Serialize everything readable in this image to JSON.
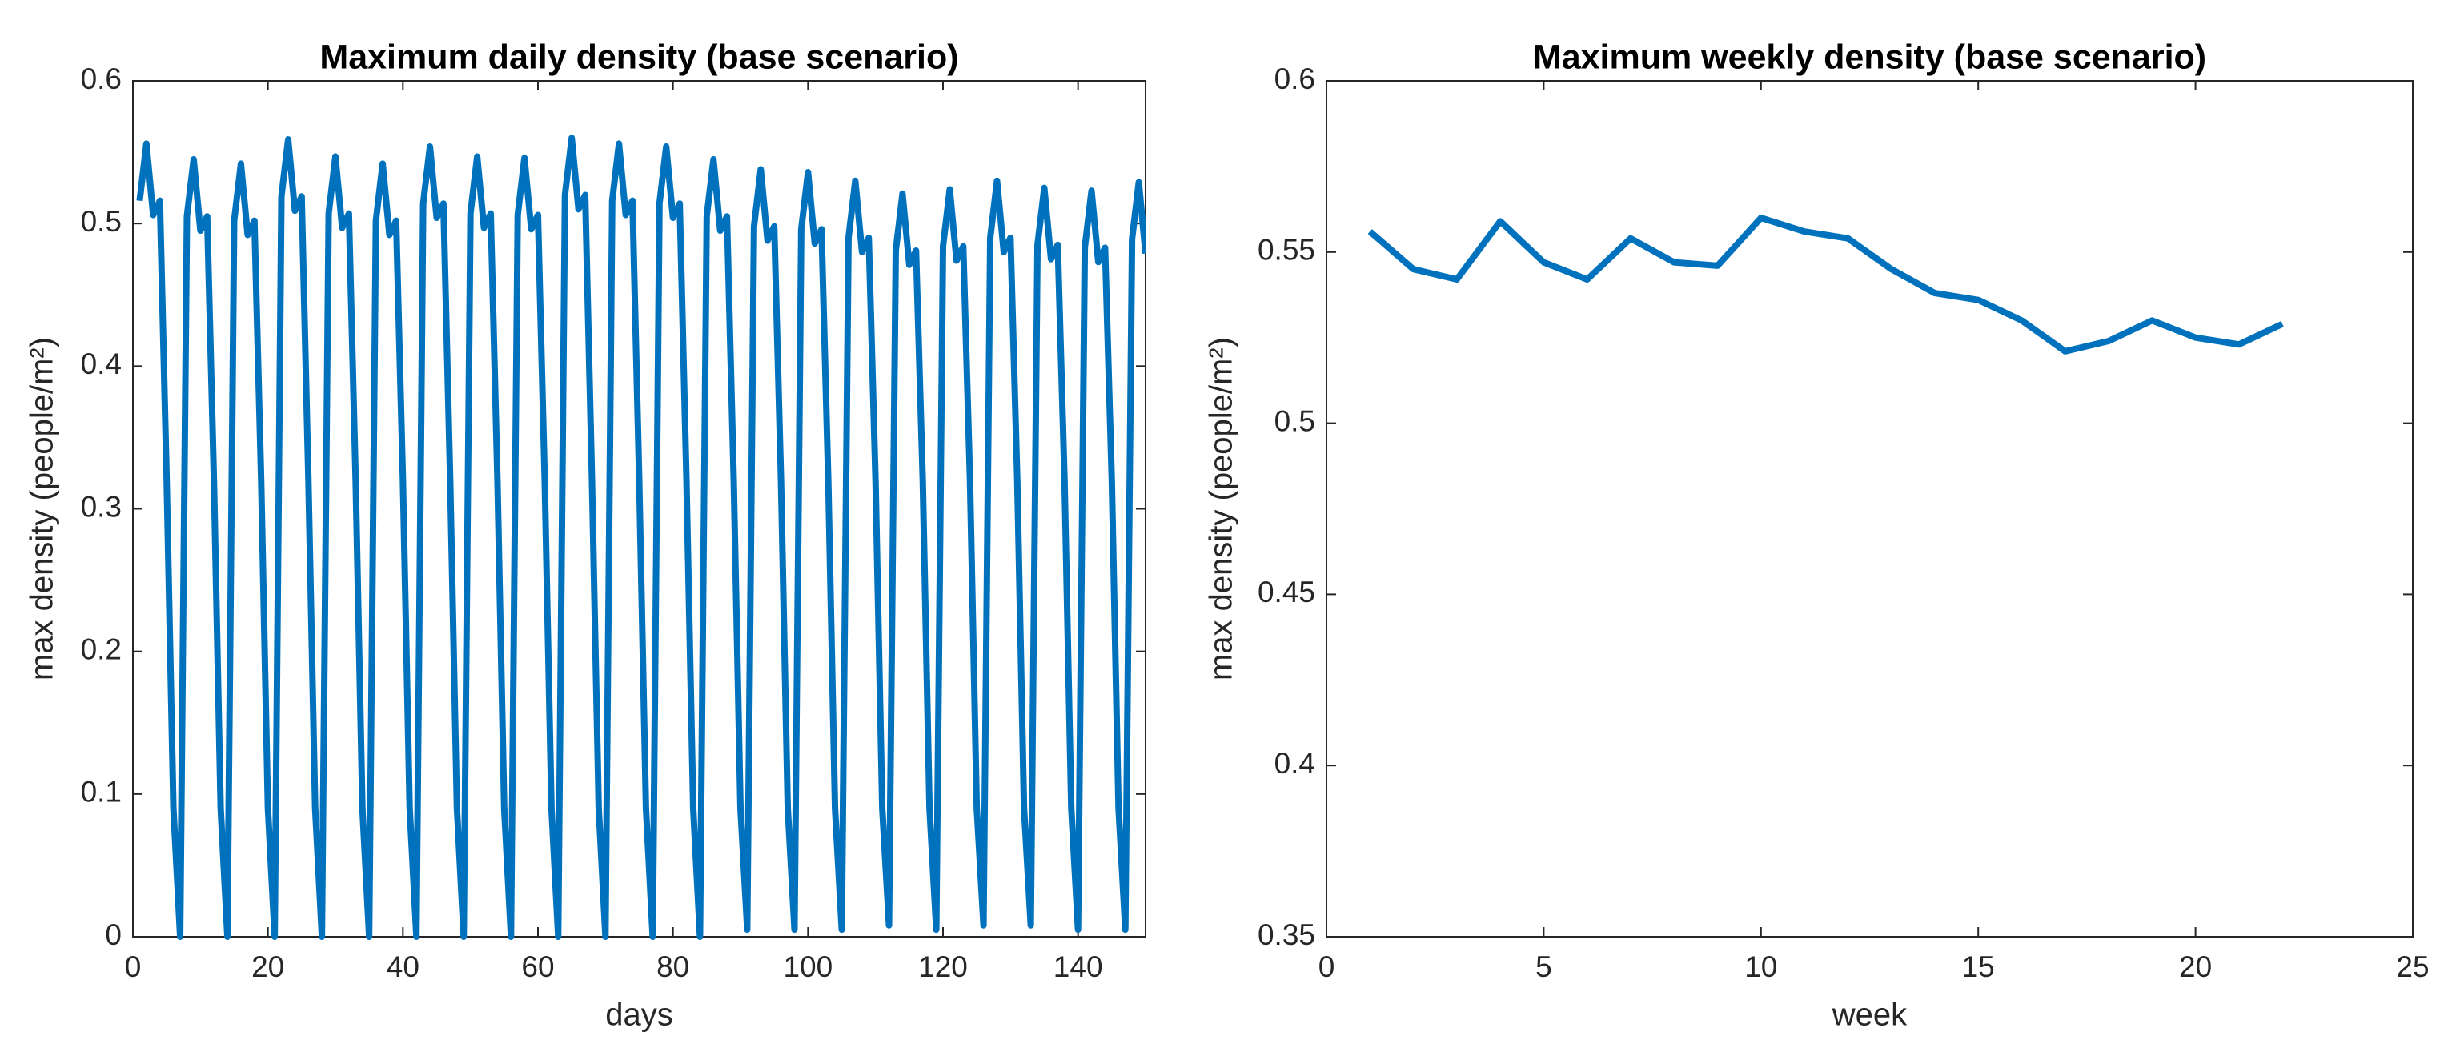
{
  "chart_data": [
    {
      "type": "line",
      "title": "Maximum daily density (base scenario)",
      "xlabel": "days",
      "ylabel": "max density (people/m²)",
      "xlim": [
        0,
        150
      ],
      "xticks": [
        0,
        20,
        40,
        60,
        80,
        100,
        120,
        140
      ],
      "ylim": [
        0,
        0.6
      ],
      "yticks": [
        0,
        0.1,
        0.2,
        0.3,
        0.4,
        0.5,
        0.6
      ],
      "grid": false,
      "x": [
        1,
        2,
        3,
        4,
        5,
        6,
        7,
        8,
        9,
        10,
        11,
        12,
        13,
        14,
        15,
        16,
        17,
        18,
        19,
        20,
        21,
        22,
        23,
        24,
        25,
        26,
        27,
        28,
        29,
        30,
        31,
        32,
        33,
        34,
        35,
        36,
        37,
        38,
        39,
        40,
        41,
        42,
        43,
        44,
        45,
        46,
        47,
        48,
        49,
        50,
        51,
        52,
        53,
        54,
        55,
        56,
        57,
        58,
        59,
        60,
        61,
        62,
        63,
        64,
        65,
        66,
        67,
        68,
        69,
        70,
        71,
        72,
        73,
        74,
        75,
        76,
        77,
        78,
        79,
        80,
        81,
        82,
        83,
        84,
        85,
        86,
        87,
        88,
        89,
        90,
        91,
        92,
        93,
        94,
        95,
        96,
        97,
        98,
        99,
        100,
        101,
        102,
        103,
        104,
        105,
        106,
        107,
        108,
        109,
        110,
        111,
        112,
        113,
        114,
        115,
        116,
        117,
        118,
        119,
        120,
        121,
        122,
        123,
        124,
        125,
        126,
        127,
        128,
        129,
        130,
        131,
        132,
        133,
        134,
        135,
        136,
        137,
        138,
        139,
        140,
        141,
        142,
        143,
        144,
        145,
        146,
        147,
        148,
        149,
        150
      ],
      "series": [
        {
          "color": "#0072bd",
          "values": [
            0.516,
            0.556,
            0.506,
            0.516,
            0.32,
            0.09,
            0,
            0.505,
            0.545,
            0.495,
            0.505,
            0.32,
            0.09,
            0,
            0.502,
            0.542,
            0.492,
            0.502,
            0.32,
            0.09,
            0,
            0.519,
            0.559,
            0.509,
            0.519,
            0.32,
            0.09,
            0,
            0.507,
            0.547,
            0.497,
            0.507,
            0.32,
            0.09,
            0,
            0.502,
            0.542,
            0.492,
            0.502,
            0.32,
            0.09,
            0,
            0.514,
            0.554,
            0.504,
            0.514,
            0.32,
            0.09,
            0,
            0.507,
            0.547,
            0.497,
            0.507,
            0.32,
            0.09,
            0,
            0.506,
            0.546,
            0.496,
            0.506,
            0.32,
            0.09,
            0,
            0.52,
            0.56,
            0.51,
            0.52,
            0.32,
            0.09,
            0,
            0.516,
            0.556,
            0.506,
            0.516,
            0.32,
            0.09,
            0,
            0.514,
            0.554,
            0.504,
            0.514,
            0.32,
            0.09,
            0,
            0.505,
            0.545,
            0.495,
            0.505,
            0.32,
            0.09,
            0.005,
            0.498,
            0.538,
            0.488,
            0.498,
            0.32,
            0.09,
            0.005,
            0.496,
            0.536,
            0.486,
            0.496,
            0.32,
            0.09,
            0.005,
            0.49,
            0.53,
            0.48,
            0.49,
            0.32,
            0.09,
            0.008,
            0.481,
            0.521,
            0.471,
            0.481,
            0.32,
            0.09,
            0.005,
            0.484,
            0.524,
            0.474,
            0.484,
            0.32,
            0.09,
            0.008,
            0.49,
            0.53,
            0.48,
            0.49,
            0.32,
            0.09,
            0.008,
            0.485,
            0.525,
            0.475,
            0.485,
            0.32,
            0.09,
            0.005,
            0.483,
            0.523,
            0.473,
            0.483,
            0.32,
            0.09,
            0.005,
            0.489,
            0.529,
            0.479
          ]
        }
      ]
    },
    {
      "type": "line",
      "title": "Maximum weekly density (base scenario)",
      "xlabel": "week",
      "ylabel": "max density (people/m²)",
      "xlim": [
        0,
        25
      ],
      "xticks": [
        0,
        5,
        10,
        15,
        20,
        25
      ],
      "ylim": [
        0.35,
        0.6
      ],
      "yticks": [
        0.35,
        0.4,
        0.45,
        0.5,
        0.55,
        0.6
      ],
      "grid": false,
      "x": [
        1,
        2,
        3,
        4,
        5,
        6,
        7,
        8,
        9,
        10,
        11,
        12,
        13,
        14,
        15,
        16,
        17,
        18,
        19,
        20,
        21,
        22
      ],
      "series": [
        {
          "color": "#0072bd",
          "values": [
            0.556,
            0.545,
            0.542,
            0.559,
            0.547,
            0.542,
            0.554,
            0.547,
            0.546,
            0.56,
            0.556,
            0.554,
            0.545,
            0.538,
            0.536,
            0.53,
            0.521,
            0.524,
            0.53,
            0.525,
            0.523,
            0.529
          ]
        }
      ]
    }
  ]
}
